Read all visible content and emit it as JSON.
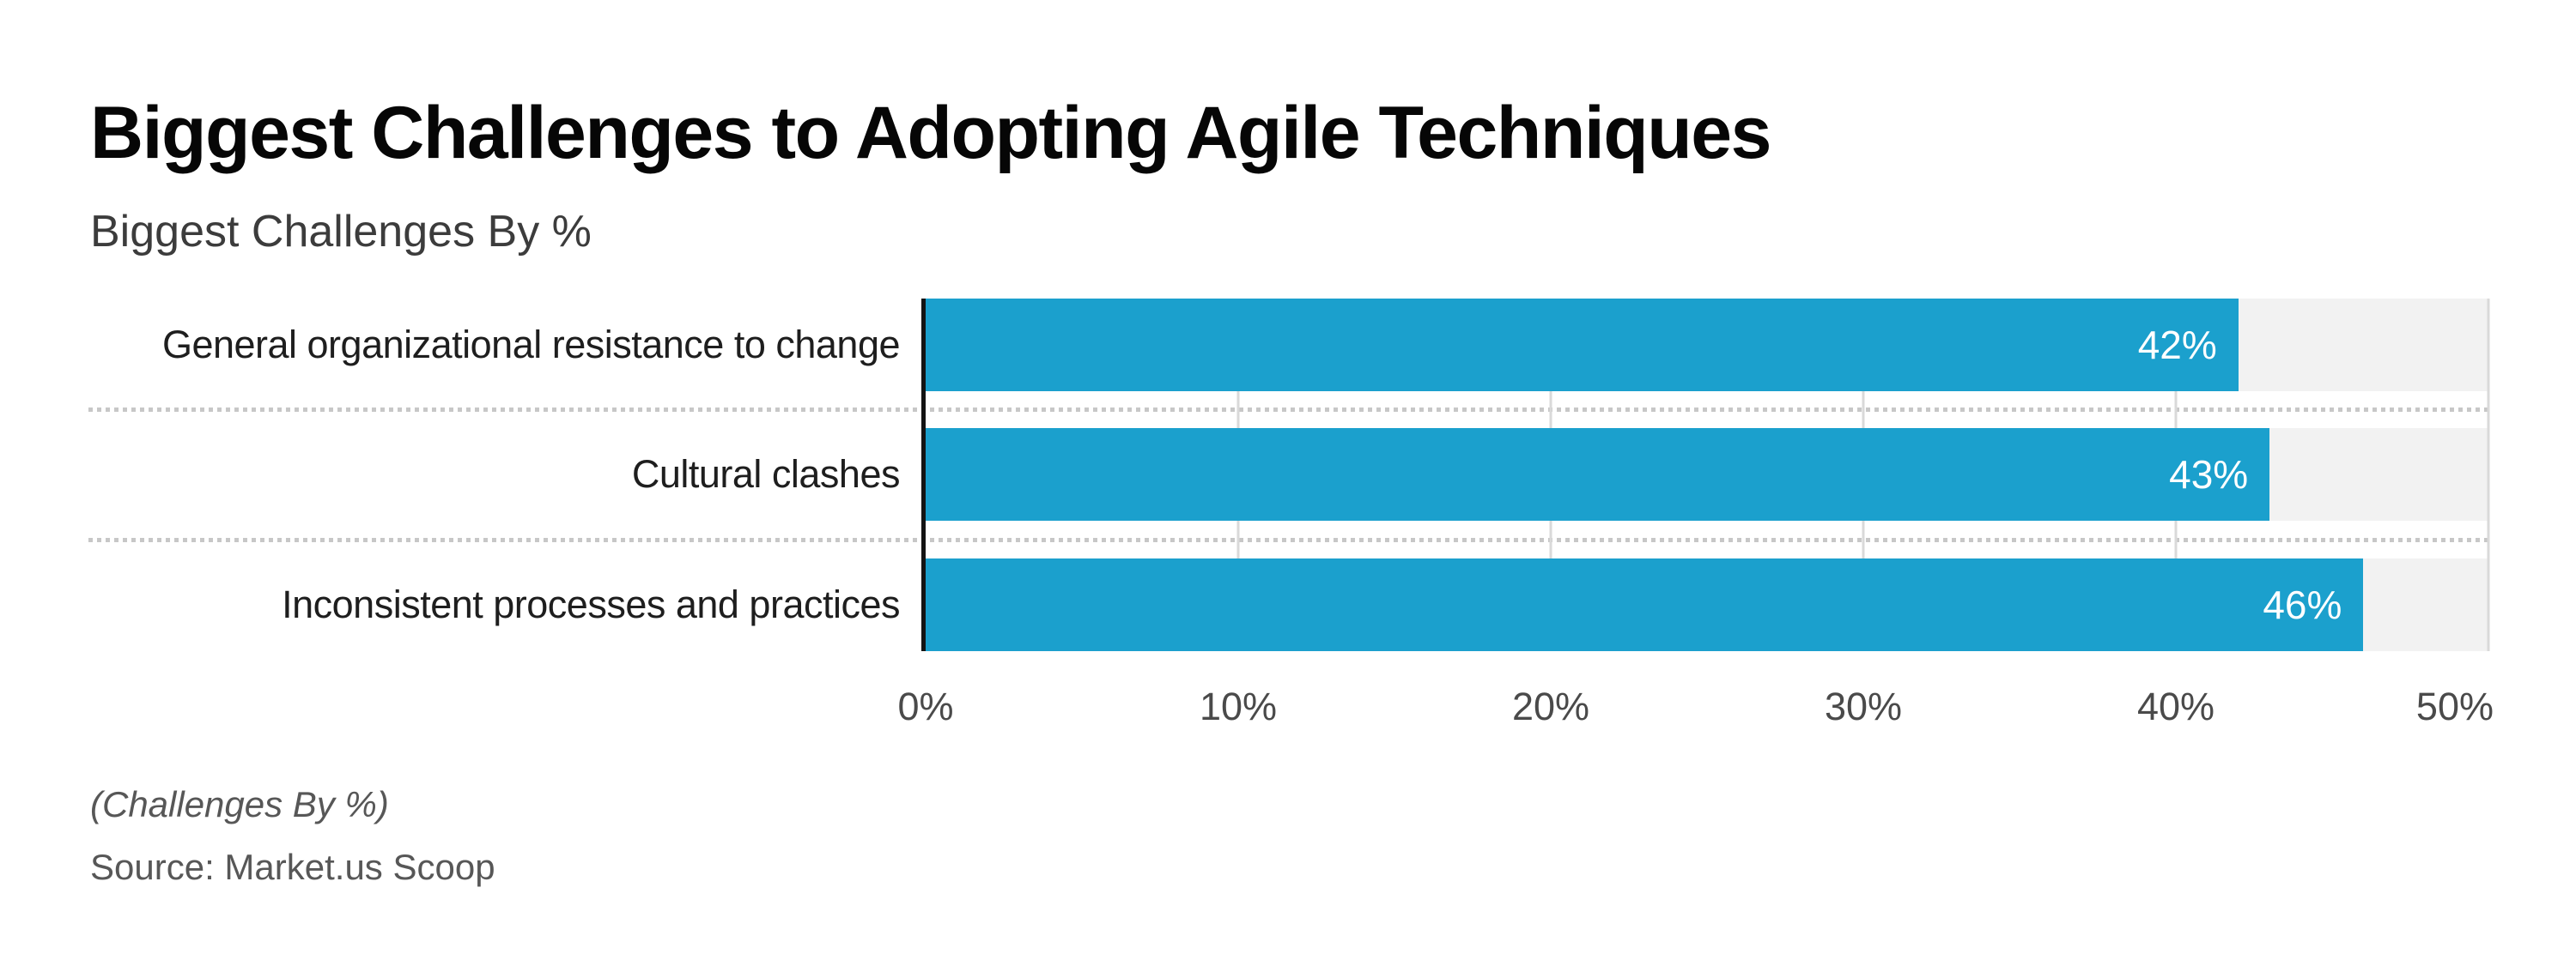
{
  "header": {
    "title": "Biggest Challenges to Adopting Agile Techniques",
    "subtitle": "Biggest Challenges By %"
  },
  "footer": {
    "footnote": "(Challenges By %)",
    "source": "Source: Market.us Scoop"
  },
  "colors": {
    "bar": "#1ba0cd",
    "bar_track": "#f2f2f2",
    "axis_line": "#141414",
    "gridline": "#d9d9d9",
    "separator_dots": "#c7c7c7",
    "tick_text": "#4a4a4a",
    "category_text": "#1e1e1e",
    "value_text": "#ffffff",
    "title_text": "#060606",
    "subtitle_text": "#3c3c3c",
    "footer_text": "#575757"
  },
  "chart_data": {
    "type": "bar",
    "orientation": "horizontal",
    "title": "Biggest Challenges to Adopting Agile Techniques",
    "subtitle": "Biggest Challenges By %",
    "categories": [
      "General organizational resistance to change",
      "Cultural clashes",
      "Inconsistent processes and practices"
    ],
    "values": [
      42,
      43,
      46
    ],
    "value_labels": [
      "42%",
      "43%",
      "46%"
    ],
    "xlim": [
      0,
      50
    ],
    "tick_values": [
      0,
      10,
      20,
      30,
      40,
      50
    ],
    "tick_labels": [
      "0%",
      "10%",
      "20%",
      "30%",
      "40%",
      "50%"
    ],
    "grid": true,
    "legend": false,
    "bar_color": "#1ba0cd"
  }
}
